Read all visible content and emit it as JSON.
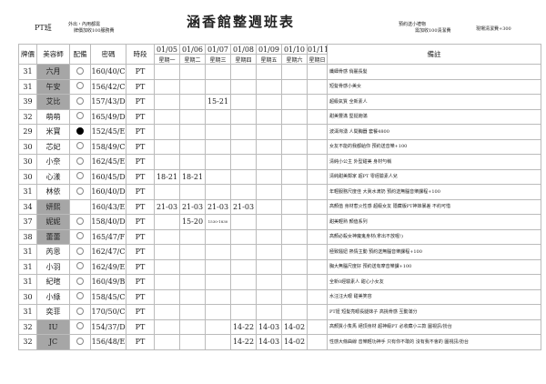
{
  "header": {
    "pt_class": "PT班",
    "note_left_1": "外出・內用都需",
    "note_left_2": "牌價加收100服務費",
    "title": "涵香館整週班表",
    "note_mid_1": "預約送小禮物",
    "note_mid_2": "需加收100清潔費",
    "note_right": "現場清潔費+300"
  },
  "columns": {
    "price": "牌價",
    "stylist": "美容師",
    "equip": "配備",
    "code": "密碼",
    "slot": "時段",
    "notes": "備註"
  },
  "dates": [
    {
      "date": "01/05",
      "day": "星期一"
    },
    {
      "date": "01/06",
      "day": "星期二"
    },
    {
      "date": "01/07",
      "day": "星期三"
    },
    {
      "date": "01/08",
      "day": "星期四"
    },
    {
      "date": "01/09",
      "day": "星期五"
    },
    {
      "date": "01/10",
      "day": "星期六"
    },
    {
      "date": "01/11",
      "day": "星期日"
    }
  ],
  "shade_color": "#a6a6a6",
  "rows": [
    {
      "price": "31",
      "name": "六月",
      "shaded": true,
      "equip": "circle",
      "code": "160/40/C",
      "slot": "PT",
      "schedule": [
        "",
        "",
        "",
        "",
        "",
        "",
        ""
      ],
      "note": "纖細骨感 俏麗長髮"
    },
    {
      "price": "31",
      "name": "午安",
      "shaded": true,
      "equip": "circle",
      "code": "156/42/C",
      "slot": "PT",
      "schedule": [
        "",
        "",
        "",
        "",
        "",
        "",
        ""
      ],
      "note": "短髮骨感小美女"
    },
    {
      "price": "39",
      "name": "艾比",
      "shaded": true,
      "equip": "circle",
      "code": "157/43/D",
      "slot": "PT",
      "schedule": [
        "",
        "",
        "15-21",
        "",
        "",
        "",
        ""
      ],
      "note": "超級氣質 全新素人"
    },
    {
      "price": "32",
      "name": "萌萌",
      "shaded": false,
      "equip": "circle",
      "code": "165/49/D",
      "slot": "PT",
      "schedule": [
        "",
        "",
        "",
        "",
        "",
        "",
        ""
      ],
      "note": "甜美豐滿 堅挺飽滿"
    },
    {
      "price": "29",
      "name": "米寶",
      "shaded": false,
      "equip": "filled",
      "code": "152/45/E",
      "slot": "PT",
      "schedule": [
        "",
        "",
        "",
        "",
        "",
        "",
        ""
      ],
      "note": "波濤洶湧 人間胸器 套餐4800"
    },
    {
      "price": "30",
      "name": "芯妃",
      "shaded": false,
      "equip": "circle",
      "code": "158/49/C",
      "slot": "PT",
      "schedule": [
        "",
        "",
        "",
        "",
        "",
        "",
        ""
      ],
      "note": "女友不能的我都給你 預約送音樂+100"
    },
    {
      "price": "30",
      "name": "小奈",
      "shaded": false,
      "equip": "circle",
      "code": "162/45/E",
      "slot": "PT",
      "schedule": [
        "",
        "",
        "",
        "",
        "",
        "",
        ""
      ],
      "note": "清純小公主 外型甜美 身材勻稱"
    },
    {
      "price": "30",
      "name": "心漾",
      "shaded": false,
      "equip": "circle",
      "code": "160/45/D",
      "slot": "PT",
      "schedule": [
        "18-21",
        "18-21",
        "",
        "",
        "",
        "",
        ""
      ],
      "note": "清純甜美鄰家 超PT 零經驗素人兒"
    },
    {
      "price": "31",
      "name": "林依",
      "shaded": false,
      "equip": "circle",
      "code": "160/40/D",
      "slot": "PT",
      "schedule": [
        "",
        "",
        "",
        "",
        "",
        "",
        ""
      ],
      "note": "年輕服務尺度佳 大眞水滴奶 預約送無腦音樂課程+100"
    },
    {
      "price": "34",
      "name": "妍熙",
      "shaded": true,
      "equip": "",
      "code": "160/43/E",
      "slot": "PT",
      "schedule": [
        "21-03",
        "21-03",
        "21-03",
        "21-03",
        "",
        "",
        ""
      ],
      "note": "高顏值 身材惹火性感 超級女友 隱藏版PT神妹暴差 不約可惜"
    },
    {
      "price": "37",
      "name": "妮妮",
      "shaded": true,
      "equip": "circle",
      "code": "158/40/D",
      "slot": "PT",
      "schedule": [
        "",
        "15-20",
        "1530-1830",
        "",
        "",
        "",
        ""
      ],
      "note": "甜美輕熟 顏值系列"
    },
    {
      "price": "38",
      "name": "蕾蕾",
      "shaded": true,
      "equip": "circle",
      "code": "165/47/F",
      "slot": "PT",
      "schedule": [
        "",
        "",
        "",
        "",
        "",
        "",
        ""
      ],
      "note": "高顏必殺女神魔鬼身材(拿出不放喔!)"
    },
    {
      "price": "31",
      "name": "芮恩",
      "shaded": false,
      "equip": "circle",
      "code": "162/47/C",
      "slot": "PT",
      "schedule": [
        "",
        "",
        "",
        "",
        "",
        "",
        ""
      ],
      "note": "極致騷妞 熱情主動 預約送無腦音樂課程+100"
    },
    {
      "price": "31",
      "name": "小羽",
      "shaded": false,
      "equip": "circle",
      "code": "162/49/E",
      "slot": "PT",
      "schedule": [
        "",
        "",
        "",
        "",
        "",
        "",
        ""
      ],
      "note": "胸大無腦尺度好 預約送有摩音樂課+100"
    },
    {
      "price": "31",
      "name": "紀暄",
      "shaded": false,
      "equip": "circle",
      "code": "160/49/B",
      "slot": "PT",
      "schedule": [
        "",
        "",
        "",
        "",
        "",
        "",
        ""
      ],
      "note": "全新0經驗素人 甜心小女友"
    },
    {
      "price": "30",
      "name": "小綠",
      "shaded": false,
      "equip": "circle",
      "code": "158/45/C",
      "slot": "PT",
      "schedule": [
        "",
        "",
        "",
        "",
        "",
        "",
        ""
      ],
      "note": "水汪汪大眼 甜美笑容"
    },
    {
      "price": "31",
      "name": "奕菲",
      "shaded": false,
      "equip": "circle",
      "code": "170/50/C",
      "slot": "PT",
      "schedule": [
        "",
        "",
        "",
        "",
        "",
        "",
        ""
      ],
      "note": "PT妞 短髮亮眼長腿妹子 高挑骨感 互動滿分"
    },
    {
      "price": "32",
      "name": "IU",
      "shaded": true,
      "equip": "circle",
      "code": "154/37/D",
      "slot": "PT",
      "schedule": [
        "",
        "",
        "",
        "14-22",
        "14-03",
        "14-02",
        ""
      ],
      "note": "高顏質小隻馬 絕頂身材 超神級PT 必收藏小三款 圖視訊/扮台"
    },
    {
      "price": "32",
      "name": "JC",
      "shaded": true,
      "equip": "circle",
      "code": "156/48/E",
      "slot": "PT",
      "schedule": [
        "",
        "",
        "",
        "14-22",
        "14-03",
        "14-02",
        ""
      ],
      "note": "性感大條曲線 音樂輕功神手 只有你不敢的 沒有我不會的 圖視訊/扮台"
    }
  ]
}
